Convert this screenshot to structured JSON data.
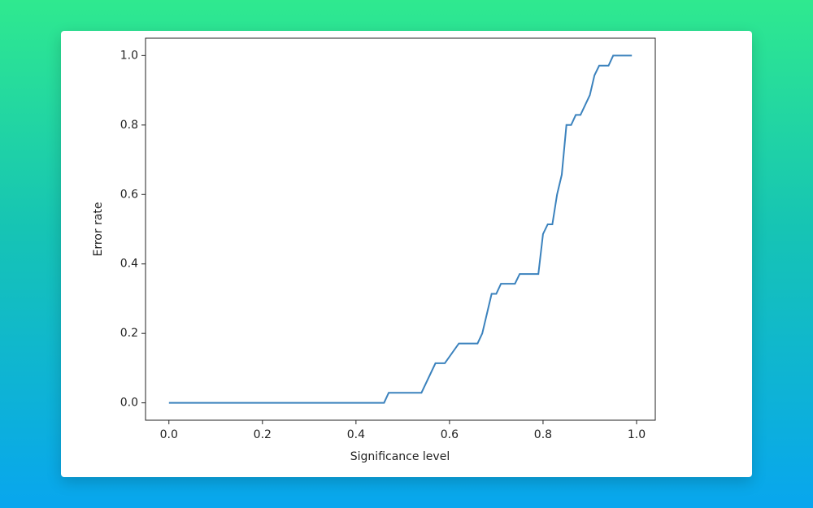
{
  "chart_data": {
    "type": "line",
    "x_label": "Significance level",
    "y_label": "Error rate",
    "x": [
      0,
      0.46,
      0.47,
      0.54,
      0.57,
      0.59,
      0.62,
      0.66,
      0.67,
      0.69,
      0.7,
      0.71,
      0.74,
      0.75,
      0.79,
      0.8,
      0.81,
      0.82,
      0.83,
      0.84,
      0.85,
      0.86,
      0.87,
      0.88,
      0.9,
      0.91,
      0.92,
      0.94,
      0.95,
      0.99
    ],
    "series": [
      {
        "color": "#3b82bd",
        "values": [
          0,
          0,
          0.029,
          0.029,
          0.114,
          0.114,
          0.171,
          0.171,
          0.2,
          0.314,
          0.314,
          0.343,
          0.343,
          0.371,
          0.371,
          0.486,
          0.514,
          0.514,
          0.6,
          0.657,
          0.8,
          0.8,
          0.829,
          0.829,
          0.886,
          0.943,
          0.971,
          0.971,
          1.0,
          1.0
        ]
      }
    ],
    "xlim": [
      -0.05,
      1.04
    ],
    "ylim": [
      -0.05,
      1.05
    ],
    "xticks": [
      {
        "value": 0,
        "label": "0.0"
      },
      {
        "value": 0.2,
        "label": "0.2"
      },
      {
        "value": 0.4,
        "label": "0.4"
      },
      {
        "value": 0.6,
        "label": "0.6"
      },
      {
        "value": 0.8,
        "label": "0.8"
      },
      {
        "value": 1,
        "label": "1.0"
      }
    ],
    "yticks": [
      {
        "value": 0,
        "label": "0.0"
      },
      {
        "value": 0.2,
        "label": "0.2"
      },
      {
        "value": 0.4,
        "label": "0.4"
      },
      {
        "value": 0.6,
        "label": "0.6"
      },
      {
        "value": 0.8,
        "label": "0.8"
      },
      {
        "value": 1,
        "label": "1.0"
      }
    ]
  }
}
